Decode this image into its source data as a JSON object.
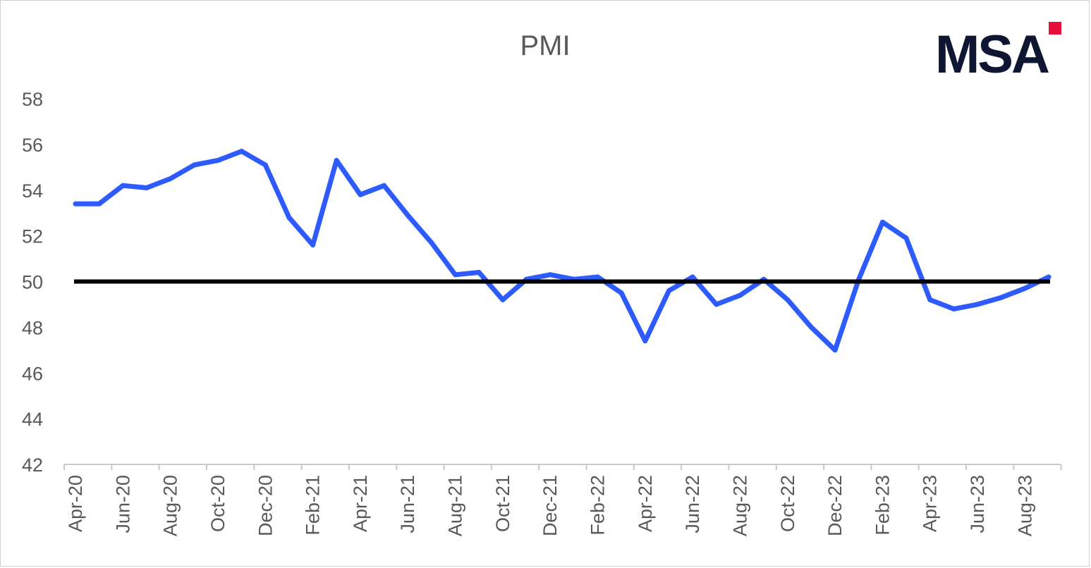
{
  "chart_data": {
    "type": "line",
    "title": "PMI",
    "xlabel": "",
    "ylabel": "",
    "ylim": [
      42,
      58
    ],
    "yticks": [
      42,
      44,
      46,
      48,
      50,
      52,
      54,
      56,
      58
    ],
    "xticks": [
      "Apr-20",
      "Jun-20",
      "Aug-20",
      "Oct-20",
      "Dec-20",
      "Feb-21",
      "Apr-21",
      "Jun-21",
      "Aug-21",
      "Oct-21",
      "Dec-21",
      "Feb-22",
      "Apr-22",
      "Jun-22",
      "Aug-22",
      "Oct-22",
      "Dec-22",
      "Feb-23",
      "Apr-23",
      "Jun-23",
      "Aug-23"
    ],
    "grid": false,
    "legend": "none",
    "reference_line": 50,
    "categories": [
      "Apr-20",
      "May-20",
      "Jun-20",
      "Jul-20",
      "Aug-20",
      "Sep-20",
      "Oct-20",
      "Nov-20",
      "Dec-20",
      "Jan-21",
      "Feb-21",
      "Mar-21",
      "Apr-21",
      "May-21",
      "Jun-21",
      "Jul-21",
      "Aug-21",
      "Sep-21",
      "Oct-21",
      "Nov-21",
      "Dec-21",
      "Jan-22",
      "Feb-22",
      "Mar-22",
      "Apr-22",
      "May-22",
      "Jun-22",
      "Jul-22",
      "Aug-22",
      "Sep-22",
      "Oct-22",
      "Nov-22",
      "Dec-22",
      "Jan-23",
      "Feb-23",
      "Mar-23",
      "Apr-23",
      "May-23",
      "Jun-23",
      "Jul-23",
      "Aug-23",
      "Sep-23"
    ],
    "series": [
      {
        "values": [
          53.4,
          53.4,
          54.2,
          54.1,
          54.5,
          55.1,
          55.3,
          55.7,
          55.1,
          52.8,
          51.6,
          55.3,
          53.8,
          54.2,
          52.9,
          51.7,
          50.3,
          50.4,
          49.2,
          50.1,
          50.3,
          50.1,
          50.2,
          49.5,
          47.4,
          49.6,
          50.2,
          49.0,
          49.4,
          50.1,
          49.2,
          48.0,
          47.0,
          50.1,
          52.6,
          51.9,
          49.2,
          48.8,
          49.0,
          49.3,
          49.7,
          50.2
        ]
      }
    ],
    "colors": {
      "series": "#2e5bff",
      "reference": "#000000",
      "axis": "#c8c8c8",
      "text": "#595959"
    }
  },
  "brand": {
    "logo_text": "MSA",
    "accent_color": "#e8103a",
    "logo_color": "#0f1631"
  }
}
